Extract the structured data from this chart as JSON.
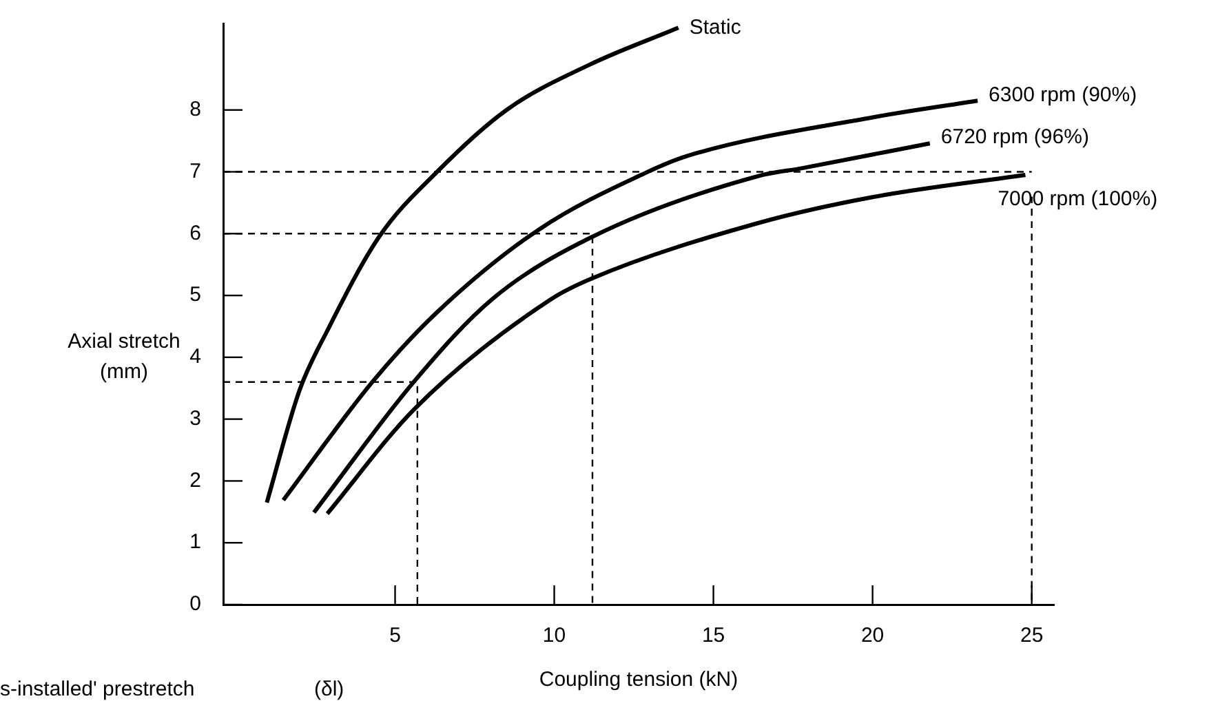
{
  "chart_data": {
    "type": "line",
    "xlabel": "Coupling tension (kN)",
    "ylabel": "Axial stretch\n(mm)",
    "xlim": [
      -0.4,
      25.7
    ],
    "ylim": [
      0,
      9.4
    ],
    "xticks": [
      5,
      10,
      15,
      20,
      25
    ],
    "yticks": [
      0,
      1,
      2,
      3,
      4,
      5,
      6,
      7,
      8
    ],
    "grid": false,
    "legend": false,
    "marker": "none",
    "annotations": [
      "s-installed' prestretch",
      "(δl)"
    ],
    "series": [
      {
        "name": "Static",
        "color": "#000000",
        "x": [
          0.97,
          2.0,
          2.87,
          4.5,
          6.3,
          8.5,
          11.1,
          13.9
        ],
        "values": [
          1.65,
          3.47,
          4.43,
          5.95,
          6.99,
          8.0,
          8.73,
          9.33
        ]
      },
      {
        "name": "6300 rpm (90%)",
        "color": "#000000",
        "x": [
          1.49,
          4.3,
          6.3,
          9.5,
          12.9,
          14.2,
          20.0,
          23.3
        ],
        "values": [
          1.69,
          3.61,
          4.72,
          6.06,
          6.99,
          7.26,
          7.88,
          8.15
        ]
      },
      {
        "name": "6720 rpm (96%)",
        "color": "#000000",
        "x": [
          2.45,
          5.6,
          8.05,
          11.2,
          16.4,
          17.8,
          21.8
        ],
        "values": [
          1.49,
          3.61,
          4.94,
          5.95,
          6.93,
          7.06,
          7.46
        ]
      },
      {
        "name": "7000 rpm (100%)",
        "color": "#000000",
        "x": [
          2.87,
          5.6,
          9.9,
          11.2,
          16.4,
          20.0,
          24.8
        ],
        "values": [
          1.47,
          3.16,
          4.94,
          5.28,
          6.17,
          6.59,
          6.95
        ]
      },
      {
        "color": "#000000",
        "line_style": "dashed",
        "x": [
          -0.4,
          25
        ],
        "values": [
          7,
          7
        ]
      },
      {
        "color": "#000000",
        "line_style": "dashed",
        "x": [
          25,
          25
        ],
        "values": [
          6.6,
          0
        ]
      },
      {
        "color": "#000000",
        "line_style": "dashed",
        "x": [
          -0.4,
          11.2,
          11.2
        ],
        "values": [
          6,
          6,
          0
        ]
      },
      {
        "color": "#000000",
        "line_style": "dashed",
        "x": [
          -0.4,
          5.7,
          5.7
        ],
        "values": [
          3.6,
          3.6,
          0
        ]
      }
    ]
  }
}
